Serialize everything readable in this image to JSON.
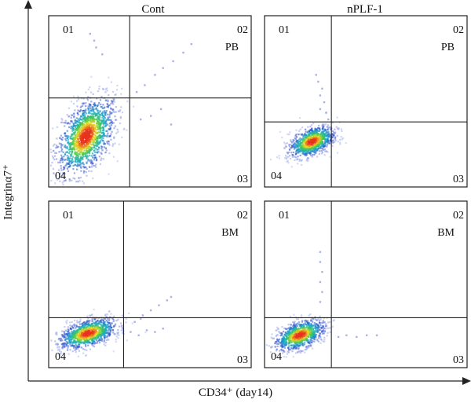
{
  "figure": {
    "x_axis_label": "CD34⁺ (day14)",
    "y_axis_label": "Integrinα7⁺"
  },
  "chart_data": [
    {
      "type": "scatter",
      "panel": "top-left",
      "title": "Cont",
      "tissue": "PB",
      "quadrants": [
        "01",
        "02",
        "03",
        "04"
      ],
      "gate": {
        "x": 0.4,
        "y": 0.52
      },
      "population": {
        "cx": 0.18,
        "cy": 0.3,
        "sx": 0.07,
        "sy": 0.11,
        "n": 1400
      },
      "tail_points": [
        [
          0.43,
          0.56
        ],
        [
          0.47,
          0.6
        ],
        [
          0.52,
          0.66
        ],
        [
          0.56,
          0.7
        ],
        [
          0.61,
          0.74
        ],
        [
          0.66,
          0.79
        ],
        [
          0.7,
          0.84
        ],
        [
          0.45,
          0.4
        ],
        [
          0.5,
          0.42
        ],
        [
          0.55,
          0.46
        ],
        [
          0.6,
          0.37
        ],
        [
          0.2,
          0.9
        ],
        [
          0.22,
          0.86
        ],
        [
          0.23,
          0.82
        ],
        [
          0.26,
          0.78
        ]
      ]
    },
    {
      "type": "scatter",
      "panel": "top-right",
      "title": "nPLF-1",
      "tissue": "PB",
      "quadrants": [
        "01",
        "02",
        "03",
        "04"
      ],
      "gate": {
        "x": 0.33,
        "y": 0.38
      },
      "population": {
        "cx": 0.23,
        "cy": 0.27,
        "sx": 0.055,
        "sy": 0.045,
        "n": 900
      },
      "tail_points": [
        [
          0.26,
          0.62
        ],
        [
          0.28,
          0.58
        ],
        [
          0.27,
          0.54
        ],
        [
          0.29,
          0.5
        ],
        [
          0.27,
          0.46
        ],
        [
          0.3,
          0.44
        ],
        [
          0.25,
          0.66
        ],
        [
          0.31,
          0.4
        ]
      ]
    },
    {
      "type": "scatter",
      "panel": "bottom-left",
      "title": "",
      "tissue": "BM",
      "quadrants": [
        "01",
        "02",
        "03",
        "04"
      ],
      "gate": {
        "x": 0.37,
        "y": 0.3
      },
      "population": {
        "cx": 0.19,
        "cy": 0.21,
        "sx": 0.07,
        "sy": 0.045,
        "n": 1000
      },
      "tail_points": [
        [
          0.42,
          0.28
        ],
        [
          0.46,
          0.32
        ],
        [
          0.5,
          0.35
        ],
        [
          0.54,
          0.38
        ],
        [
          0.58,
          0.41
        ],
        [
          0.6,
          0.43
        ],
        [
          0.4,
          0.22
        ],
        [
          0.44,
          0.2
        ],
        [
          0.48,
          0.23
        ],
        [
          0.52,
          0.22
        ],
        [
          0.56,
          0.24
        ],
        [
          0.45,
          0.3
        ]
      ]
    },
    {
      "type": "scatter",
      "panel": "bottom-right",
      "title": "",
      "tissue": "BM",
      "quadrants": [
        "01",
        "02",
        "03",
        "04"
      ],
      "gate": {
        "x": 0.33,
        "y": 0.3
      },
      "population": {
        "cx": 0.17,
        "cy": 0.2,
        "sx": 0.06,
        "sy": 0.045,
        "n": 900
      },
      "tail_points": [
        [
          0.27,
          0.7
        ],
        [
          0.27,
          0.64
        ],
        [
          0.28,
          0.58
        ],
        [
          0.27,
          0.52
        ],
        [
          0.28,
          0.46
        ],
        [
          0.27,
          0.4
        ],
        [
          0.36,
          0.19
        ],
        [
          0.4,
          0.2
        ],
        [
          0.45,
          0.19
        ],
        [
          0.5,
          0.2
        ],
        [
          0.55,
          0.2
        ]
      ]
    }
  ]
}
